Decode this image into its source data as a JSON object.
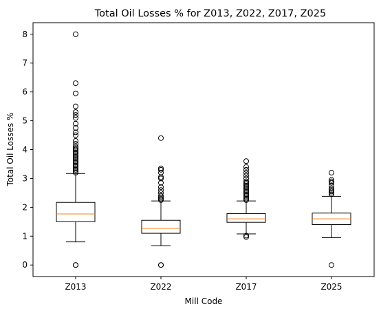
{
  "chart_data": {
    "type": "box",
    "title": "Total Oil Losses % for Z013, Z022, Z017, Z025",
    "xlabel": "Mill Code",
    "ylabel": "Total Oil Losses %",
    "ylim": [
      -0.4,
      8.4
    ],
    "yticks": [
      0,
      1,
      2,
      3,
      4,
      5,
      6,
      7,
      8
    ],
    "grid": false,
    "legend": "none",
    "colors": {
      "box": "#000000",
      "median": "#ff7f0e",
      "outlier": "#000000"
    },
    "categories": [
      "Z013",
      "Z022",
      "Z017",
      "Z025"
    ],
    "boxes": [
      {
        "label": "Z013",
        "whisker_low": 0.8,
        "q1": 1.5,
        "median": 1.77,
        "q3": 2.17,
        "whisker_high": 3.17,
        "outliers": [
          0,
          0,
          3.2,
          3.25,
          3.3,
          3.35,
          3.4,
          3.45,
          3.5,
          3.55,
          3.6,
          3.65,
          3.7,
          3.75,
          3.8,
          3.85,
          3.9,
          3.95,
          4.0,
          4.05,
          4.1,
          4.2,
          4.3,
          4.5,
          4.6,
          4.75,
          4.9,
          5.1,
          5.2,
          5.3,
          5.5,
          5.95,
          6.3,
          8.0
        ]
      },
      {
        "label": "Z022",
        "whisker_low": 0.67,
        "q1": 1.1,
        "median": 1.27,
        "q3": 1.55,
        "whisker_high": 2.22,
        "outliers": [
          0,
          0,
          2.25,
          2.3,
          2.35,
          2.4,
          2.5,
          2.6,
          2.7,
          2.85,
          3.0,
          3.05,
          3.2,
          3.3,
          3.35,
          4.4
        ]
      },
      {
        "label": "Z017",
        "whisker_low": 1.08,
        "q1": 1.48,
        "median": 1.6,
        "q3": 1.78,
        "whisker_high": 2.22,
        "outliers": [
          0.97,
          1.02,
          2.25,
          2.3,
          2.35,
          2.4,
          2.45,
          2.5,
          2.55,
          2.6,
          2.65,
          2.7,
          2.75,
          2.8,
          2.85,
          2.9,
          3.0,
          3.1,
          3.2,
          3.3,
          3.4,
          3.6
        ]
      },
      {
        "label": "Z025",
        "whisker_low": 0.95,
        "q1": 1.4,
        "median": 1.6,
        "q3": 1.8,
        "whisker_high": 2.38,
        "outliers": [
          0,
          2.45,
          2.5,
          2.55,
          2.6,
          2.65,
          2.75,
          2.85,
          2.9,
          2.95,
          3.2
        ]
      }
    ]
  }
}
